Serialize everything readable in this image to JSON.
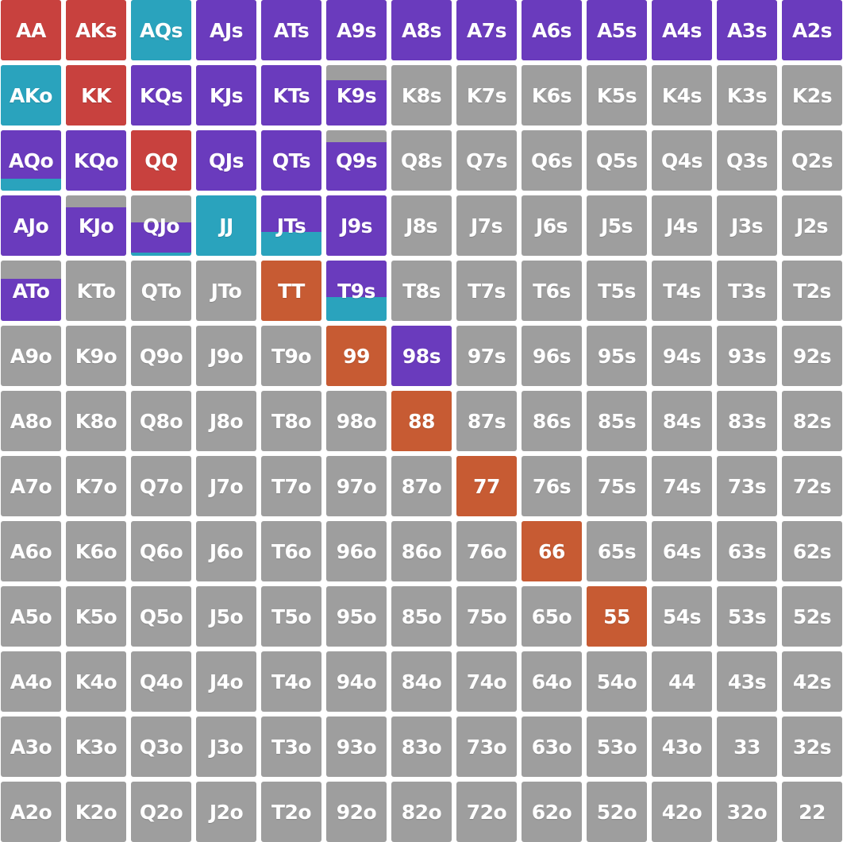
{
  "colors": {
    "fold": "#9e9e9e",
    "raise_4bet": "#c8413e",
    "call": "#2aa3bd",
    "raise": "#6a3bbd",
    "pair_raise": "#c75b33"
  },
  "legend_note": "",
  "hands": [
    [
      "AA",
      "AKs",
      "AQs",
      "AJs",
      "ATs",
      "A9s",
      "A8s",
      "A7s",
      "A6s",
      "A5s",
      "A4s",
      "A3s",
      "A2s"
    ],
    [
      "AKo",
      "KK",
      "KQs",
      "KJs",
      "KTs",
      "K9s",
      "K8s",
      "K7s",
      "K6s",
      "K5s",
      "K4s",
      "K3s",
      "K2s"
    ],
    [
      "AQo",
      "KQo",
      "QQ",
      "QJs",
      "QTs",
      "Q9s",
      "Q8s",
      "Q7s",
      "Q6s",
      "Q5s",
      "Q4s",
      "Q3s",
      "Q2s"
    ],
    [
      "AJo",
      "KJo",
      "QJo",
      "JJ",
      "JTs",
      "J9s",
      "J8s",
      "J7s",
      "J6s",
      "J5s",
      "J4s",
      "J3s",
      "J2s"
    ],
    [
      "ATo",
      "KTo",
      "QTo",
      "JTo",
      "TT",
      "T9s",
      "T8s",
      "T7s",
      "T6s",
      "T5s",
      "T4s",
      "T3s",
      "T2s"
    ],
    [
      "A9o",
      "K9o",
      "Q9o",
      "J9o",
      "T9o",
      "99",
      "98s",
      "97s",
      "96s",
      "95s",
      "94s",
      "93s",
      "92s"
    ],
    [
      "A8o",
      "K8o",
      "Q8o",
      "J8o",
      "T8o",
      "98o",
      "88",
      "87s",
      "86s",
      "85s",
      "84s",
      "83s",
      "82s"
    ],
    [
      "A7o",
      "K7o",
      "Q7o",
      "J7o",
      "T7o",
      "97o",
      "87o",
      "77",
      "76s",
      "75s",
      "74s",
      "73s",
      "72s"
    ],
    [
      "A6o",
      "K6o",
      "Q6o",
      "J6o",
      "T6o",
      "96o",
      "86o",
      "76o",
      "66",
      "65s",
      "64s",
      "63s",
      "62s"
    ],
    [
      "A5o",
      "K5o",
      "Q5o",
      "J5o",
      "T5o",
      "95o",
      "85o",
      "75o",
      "65o",
      "55",
      "54s",
      "53s",
      "52s"
    ],
    [
      "A4o",
      "K4o",
      "Q4o",
      "J4o",
      "T4o",
      "94o",
      "84o",
      "74o",
      "64o",
      "54o",
      "44",
      "43s",
      "42s"
    ],
    [
      "A3o",
      "K3o",
      "Q3o",
      "J3o",
      "T3o",
      "93o",
      "83o",
      "73o",
      "63o",
      "53o",
      "43o",
      "33",
      "32s"
    ],
    [
      "A2o",
      "K2o",
      "Q2o",
      "J2o",
      "T2o",
      "92o",
      "82o",
      "72o",
      "62o",
      "52o",
      "42o",
      "32o",
      "22"
    ]
  ],
  "actions": {
    "AA": [
      {
        "action": "raise_4bet",
        "freq": 1.0
      }
    ],
    "AKs": [
      {
        "action": "raise_4bet",
        "freq": 1.0
      }
    ],
    "AQs": [
      {
        "action": "call",
        "freq": 1.0
      }
    ],
    "AJs": [
      {
        "action": "raise",
        "freq": 1.0
      }
    ],
    "ATs": [
      {
        "action": "raise",
        "freq": 1.0
      }
    ],
    "A9s": [
      {
        "action": "raise",
        "freq": 1.0
      }
    ],
    "A8s": [
      {
        "action": "raise",
        "freq": 1.0
      }
    ],
    "A7s": [
      {
        "action": "raise",
        "freq": 1.0
      }
    ],
    "A6s": [
      {
        "action": "raise",
        "freq": 1.0
      }
    ],
    "A5s": [
      {
        "action": "raise",
        "freq": 1.0
      }
    ],
    "A4s": [
      {
        "action": "raise",
        "freq": 1.0
      }
    ],
    "A3s": [
      {
        "action": "raise",
        "freq": 1.0
      }
    ],
    "A2s": [
      {
        "action": "raise",
        "freq": 1.0
      }
    ],
    "AKo": [
      {
        "action": "call",
        "freq": 1.0
      }
    ],
    "KK": [
      {
        "action": "raise_4bet",
        "freq": 1.0
      }
    ],
    "KQs": [
      {
        "action": "raise",
        "freq": 1.0
      }
    ],
    "KJs": [
      {
        "action": "raise",
        "freq": 1.0
      }
    ],
    "KTs": [
      {
        "action": "raise",
        "freq": 1.0
      }
    ],
    "K9s": [
      {
        "action": "raise",
        "freq": 0.75
      }
    ],
    "AQo": [
      {
        "action": "call",
        "freq": 0.2
      },
      {
        "action": "raise",
        "freq": 0.8
      }
    ],
    "KQo": [
      {
        "action": "raise",
        "freq": 1.0
      }
    ],
    "QQ": [
      {
        "action": "raise_4bet",
        "freq": 1.0
      }
    ],
    "QJs": [
      {
        "action": "raise",
        "freq": 1.0
      }
    ],
    "QTs": [
      {
        "action": "raise",
        "freq": 1.0
      }
    ],
    "Q9s": [
      {
        "action": "raise",
        "freq": 0.8
      }
    ],
    "AJo": [
      {
        "action": "raise",
        "freq": 1.0
      }
    ],
    "KJo": [
      {
        "action": "raise",
        "freq": 0.8
      }
    ],
    "QJo": [
      {
        "action": "call",
        "freq": 0.05
      },
      {
        "action": "raise",
        "freq": 0.5
      }
    ],
    "JJ": [
      {
        "action": "call",
        "freq": 1.0
      }
    ],
    "JTs": [
      {
        "action": "call",
        "freq": 0.4
      },
      {
        "action": "raise",
        "freq": 0.6
      }
    ],
    "J9s": [
      {
        "action": "raise",
        "freq": 1.0
      }
    ],
    "ATo": [
      {
        "action": "raise",
        "freq": 0.7
      }
    ],
    "TT": [
      {
        "action": "pair_raise",
        "freq": 1.0
      }
    ],
    "T9s": [
      {
        "action": "call",
        "freq": 0.4
      },
      {
        "action": "raise",
        "freq": 0.6
      }
    ],
    "99": [
      {
        "action": "pair_raise",
        "freq": 1.0
      }
    ],
    "98s": [
      {
        "action": "raise",
        "freq": 1.0
      }
    ],
    "88": [
      {
        "action": "pair_raise",
        "freq": 1.0
      }
    ],
    "77": [
      {
        "action": "pair_raise",
        "freq": 1.0
      }
    ],
    "66": [
      {
        "action": "pair_raise",
        "freq": 1.0
      }
    ],
    "55": [
      {
        "action": "pair_raise",
        "freq": 1.0
      }
    ]
  }
}
